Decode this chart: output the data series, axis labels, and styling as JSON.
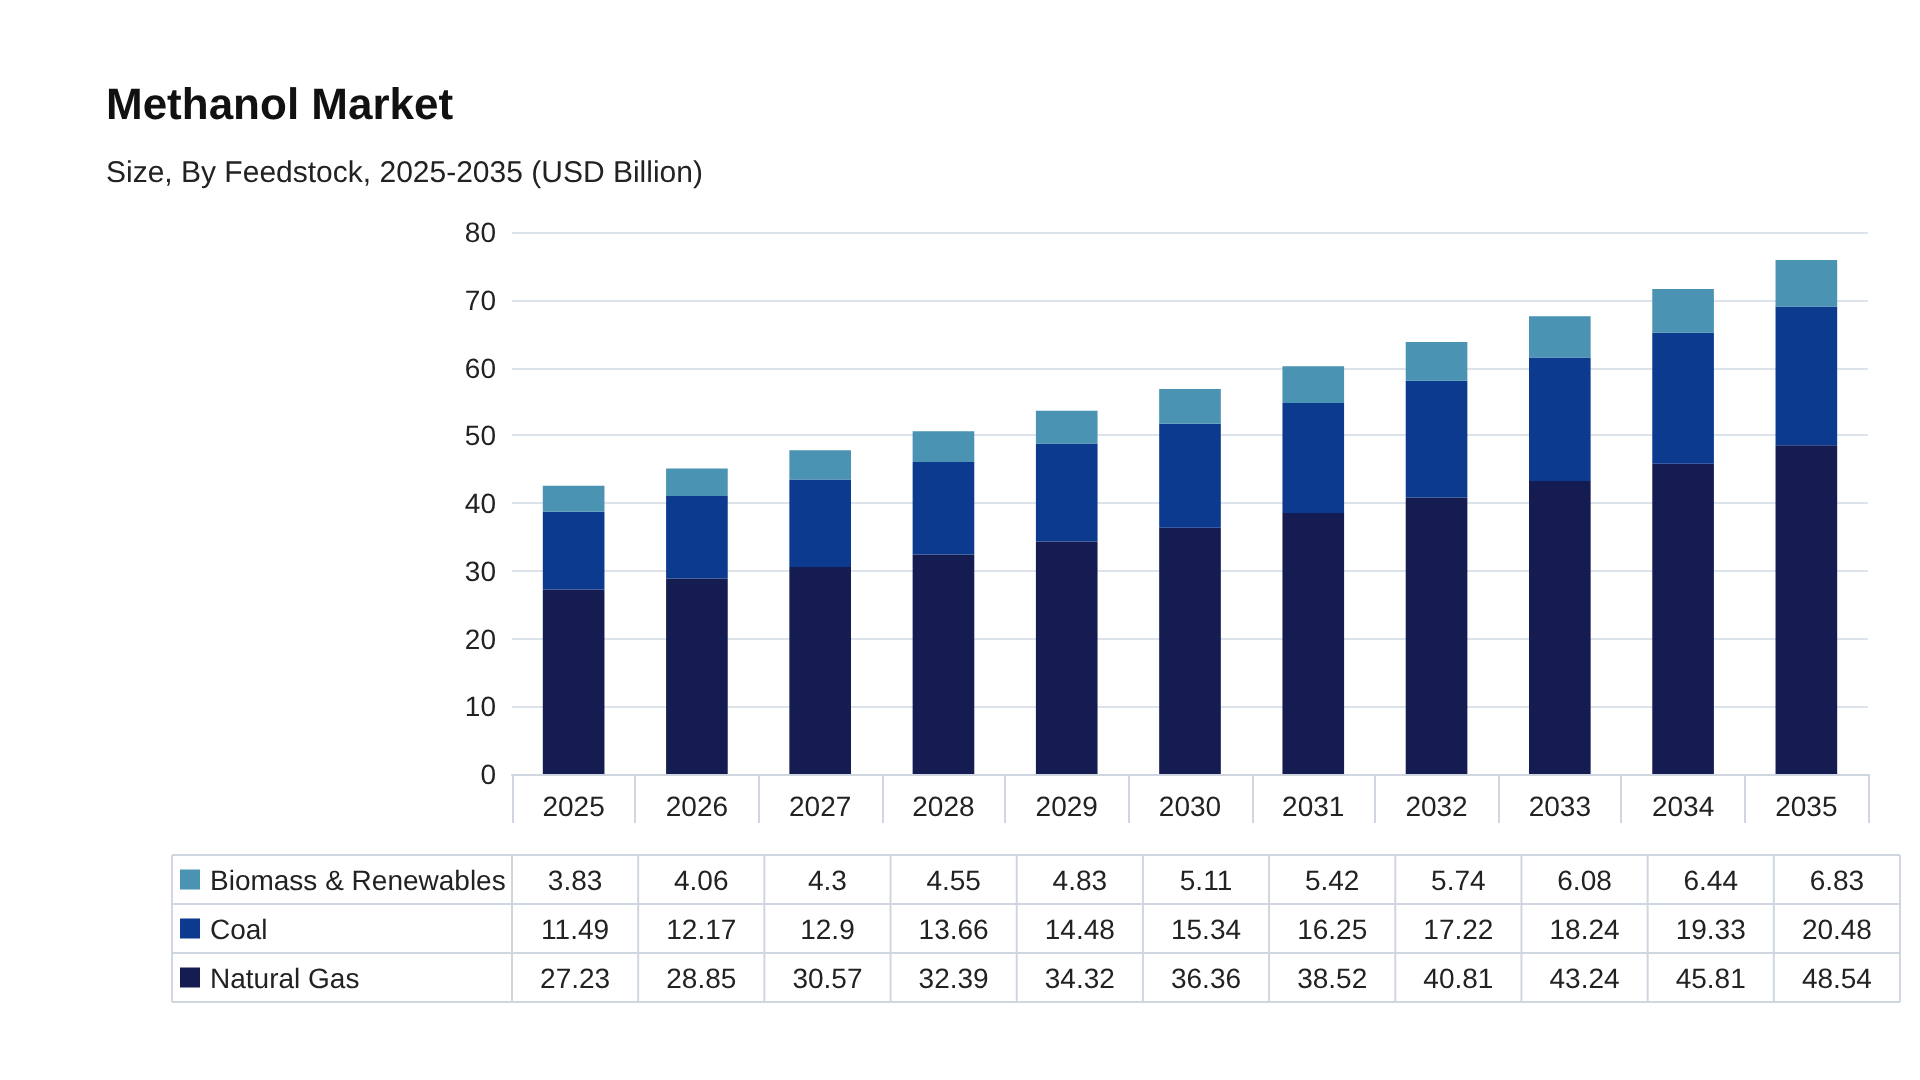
{
  "chart_data": {
    "type": "bar",
    "title": "Methanol Market",
    "subtitle": "Size, By Feedstock, 2025-2035 (USD Billion)",
    "categories": [
      "2025",
      "2026",
      "2027",
      "2028",
      "2029",
      "2030",
      "2031",
      "2032",
      "2033",
      "2034",
      "2035"
    ],
    "series": [
      {
        "name": "Natural Gas",
        "color": "#141c52",
        "values": [
          27.23,
          28.85,
          30.57,
          32.39,
          34.32,
          36.36,
          38.52,
          40.81,
          43.24,
          45.81,
          48.54
        ]
      },
      {
        "name": "Coal",
        "color": "#0b3a8f",
        "values": [
          11.49,
          12.17,
          12.9,
          13.66,
          14.48,
          15.34,
          16.25,
          17.22,
          18.24,
          19.33,
          20.48
        ]
      },
      {
        "name": "Biomass & Renewables",
        "color": "#4a93b3",
        "values": [
          3.83,
          4.06,
          4.3,
          4.55,
          4.83,
          5.11,
          5.42,
          5.74,
          6.08,
          6.44,
          6.83
        ]
      }
    ],
    "stacked": true,
    "ylim": [
      0,
      80
    ],
    "yticks": [
      0,
      10,
      20,
      30,
      40,
      50,
      60,
      70,
      80
    ],
    "grid": "y",
    "legend": "bottom left",
    "data_labels": true
  }
}
